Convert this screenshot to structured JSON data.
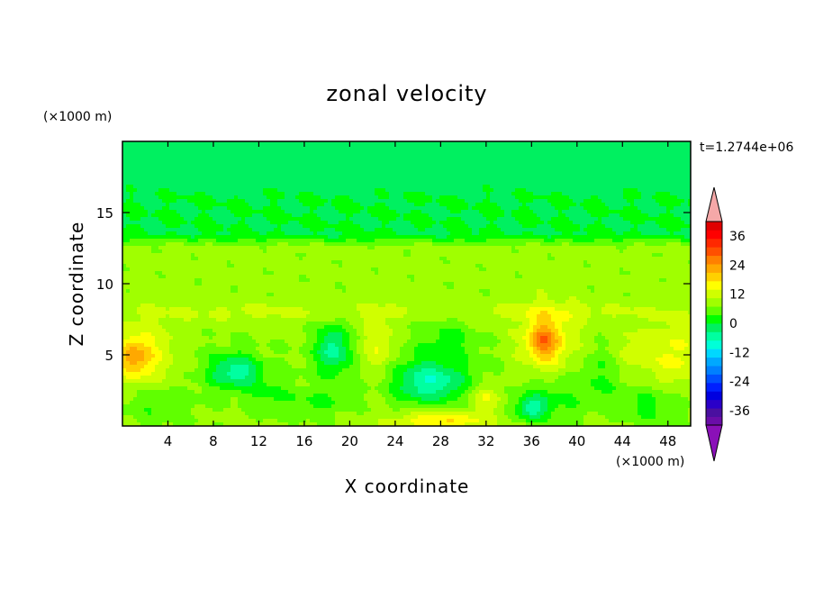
{
  "chart_data": {
    "type": "heatmap",
    "title": "zonal velocity",
    "xlabel": "X coordinate",
    "ylabel": "Z coordinate",
    "x_unit": "(×1000 m)",
    "y_unit": "(×1000 m)",
    "time_label": "t=1.2744e+06",
    "xlim": [
      0,
      50
    ],
    "ylim": [
      0,
      20
    ],
    "x_ticks": [
      4,
      8,
      12,
      16,
      20,
      24,
      28,
      32,
      36,
      40,
      44,
      48
    ],
    "y_ticks": [
      5,
      10,
      15
    ],
    "colorbar": {
      "min": -42,
      "max": 42,
      "step": 3,
      "tick_values": [
        36,
        24,
        12,
        0,
        -12,
        -24,
        -36
      ],
      "extend": "both",
      "colors": [
        "#6a0da8",
        "#4a10a0",
        "#2a00c8",
        "#0000e0",
        "#0020ff",
        "#0050ff",
        "#0080ff",
        "#00a8ff",
        "#00d8ff",
        "#00ffd8",
        "#00ffa0",
        "#00f060",
        "#00ff00",
        "#60ff00",
        "#a0ff00",
        "#d0ff00",
        "#ffff00",
        "#ffd000",
        "#ffa800",
        "#ff8000",
        "#ff5000",
        "#ff2800",
        "#ff0000",
        "#e00000"
      ],
      "under_color": "#8a10b8",
      "over_color": "#f5a8a8"
    },
    "field": {
      "background_value": 1,
      "layers": [
        {
          "z_range": [
            13,
            20
          ],
          "value": -6
        },
        {
          "z_range": [
            16.5,
            20
          ],
          "value": -7
        }
      ],
      "features": [
        {
          "x": 2,
          "z": 5,
          "rx": 3,
          "rz": 2.5,
          "value": 5
        },
        {
          "x": 1,
          "z": 4.8,
          "rx": 1.5,
          "rz": 1.3,
          "value": 9
        },
        {
          "x": 9.5,
          "z": 4,
          "rx": 3.5,
          "rz": 1.8,
          "value": -4
        },
        {
          "x": 10,
          "z": 3.8,
          "rx": 2,
          "rz": 1.1,
          "value": -8
        },
        {
          "x": 13,
          "z": 2,
          "rx": 2,
          "rz": 1.5,
          "value": -4
        },
        {
          "x": 17,
          "z": 1.6,
          "rx": 2.5,
          "rz": 1,
          "value": -4
        },
        {
          "x": 18.5,
          "z": 5,
          "rx": 2.5,
          "rz": 2.5,
          "value": -4
        },
        {
          "x": 18.5,
          "z": 5.5,
          "rx": 1.2,
          "rz": 1.5,
          "value": -8
        },
        {
          "x": 22.5,
          "z": 5.5,
          "rx": 1.5,
          "rz": 2.3,
          "value": 6
        },
        {
          "x": 27,
          "z": 3.5,
          "rx": 5,
          "rz": 2.5,
          "value": -4
        },
        {
          "x": 27,
          "z": 3,
          "rx": 3,
          "rz": 1.3,
          "value": -9
        },
        {
          "x": 28,
          "z": 0.4,
          "rx": 4,
          "rz": 0.7,
          "value": 9
        },
        {
          "x": 28.5,
          "z": 6,
          "rx": 2.5,
          "rz": 1.8,
          "value": -4
        },
        {
          "x": 32,
          "z": 2,
          "rx": 1.5,
          "rz": 1,
          "value": 6
        },
        {
          "x": 37.5,
          "z": 6,
          "rx": 2.5,
          "rz": 2.5,
          "value": 7
        },
        {
          "x": 37,
          "z": 6,
          "rx": 1.3,
          "rz": 1.2,
          "value": 10
        },
        {
          "x": 37.5,
          "z": 2,
          "rx": 3,
          "rz": 1.6,
          "value": -5
        },
        {
          "x": 36,
          "z": 1.2,
          "rx": 1.5,
          "rz": 0.8,
          "value": -9
        },
        {
          "x": 42,
          "z": 3.5,
          "rx": 2.5,
          "rz": 2,
          "value": -4
        },
        {
          "x": 46.5,
          "z": 1.5,
          "rx": 3,
          "rz": 1.5,
          "value": -5
        },
        {
          "x": 48.5,
          "z": 5,
          "rx": 2,
          "rz": 2.5,
          "value": 6
        },
        {
          "x": 3,
          "z": 1.5,
          "rx": 3.5,
          "rz": 1.5,
          "value": -4
        },
        {
          "x": 45,
          "z": 5,
          "rx": 1.5,
          "rz": 2,
          "value": 4
        },
        {
          "x": 13,
          "z": 8,
          "rx": 12,
          "rz": 0.6,
          "value": 3
        },
        {
          "x": 38,
          "z": 8,
          "rx": 10,
          "rz": 0.6,
          "value": 3
        }
      ]
    }
  }
}
